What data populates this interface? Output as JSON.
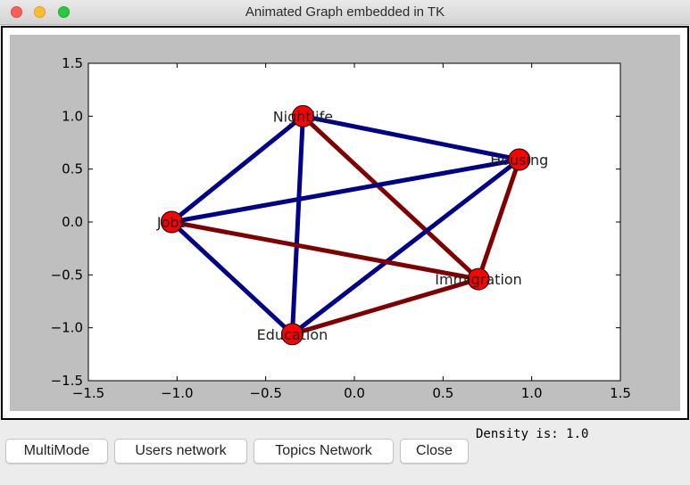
{
  "window": {
    "title": "Animated Graph embedded in TK"
  },
  "chart_data": {
    "type": "network",
    "xlim": [
      -1.5,
      1.5
    ],
    "ylim": [
      -1.5,
      1.5
    ],
    "x_ticks": [
      "−1.5",
      "−1.0",
      "−0.5",
      "0.0",
      "0.5",
      "1.0",
      "1.5"
    ],
    "y_ticks": [
      "1.5",
      "1.0",
      "0.5",
      "0.0",
      "−0.5",
      "−1.0",
      "−1.5"
    ],
    "x_tick_values": [
      -1.5,
      -1.0,
      -0.5,
      0.0,
      0.5,
      1.0,
      1.5
    ],
    "y_tick_values": [
      1.5,
      1.0,
      0.5,
      0.0,
      -0.5,
      -1.0,
      -1.5
    ],
    "nodes": [
      {
        "label": "Nightlife",
        "x": -0.29,
        "y": 1.0
      },
      {
        "label": "Housing",
        "x": 0.93,
        "y": 0.59
      },
      {
        "label": "Jobs",
        "x": -1.03,
        "y": 0.0
      },
      {
        "label": "Immigration",
        "x": 0.7,
        "y": -0.54
      },
      {
        "label": "Education",
        "x": -0.35,
        "y": -1.06
      }
    ],
    "edges": [
      {
        "from": "Nightlife",
        "to": "Housing",
        "color": "#00008b"
      },
      {
        "from": "Nightlife",
        "to": "Jobs",
        "color": "#00008b"
      },
      {
        "from": "Nightlife",
        "to": "Education",
        "color": "#00008b"
      },
      {
        "from": "Nightlife",
        "to": "Immigration",
        "color": "#800000"
      },
      {
        "from": "Housing",
        "to": "Jobs",
        "color": "#00008b"
      },
      {
        "from": "Housing",
        "to": "Education",
        "color": "#00008b"
      },
      {
        "from": "Housing",
        "to": "Immigration",
        "color": "#800000"
      },
      {
        "from": "Jobs",
        "to": "Education",
        "color": "#00008b"
      },
      {
        "from": "Jobs",
        "to": "Immigration",
        "color": "#800000"
      },
      {
        "from": "Education",
        "to": "Immigration",
        "color": "#800000"
      }
    ],
    "node_color": "#ff0000",
    "grid": false
  },
  "buttons": {
    "multimode": "MultiMode",
    "users_network": "Users network",
    "topics_network": "Topics Network",
    "close": "Close"
  },
  "density_label": "Density is: 1.0"
}
